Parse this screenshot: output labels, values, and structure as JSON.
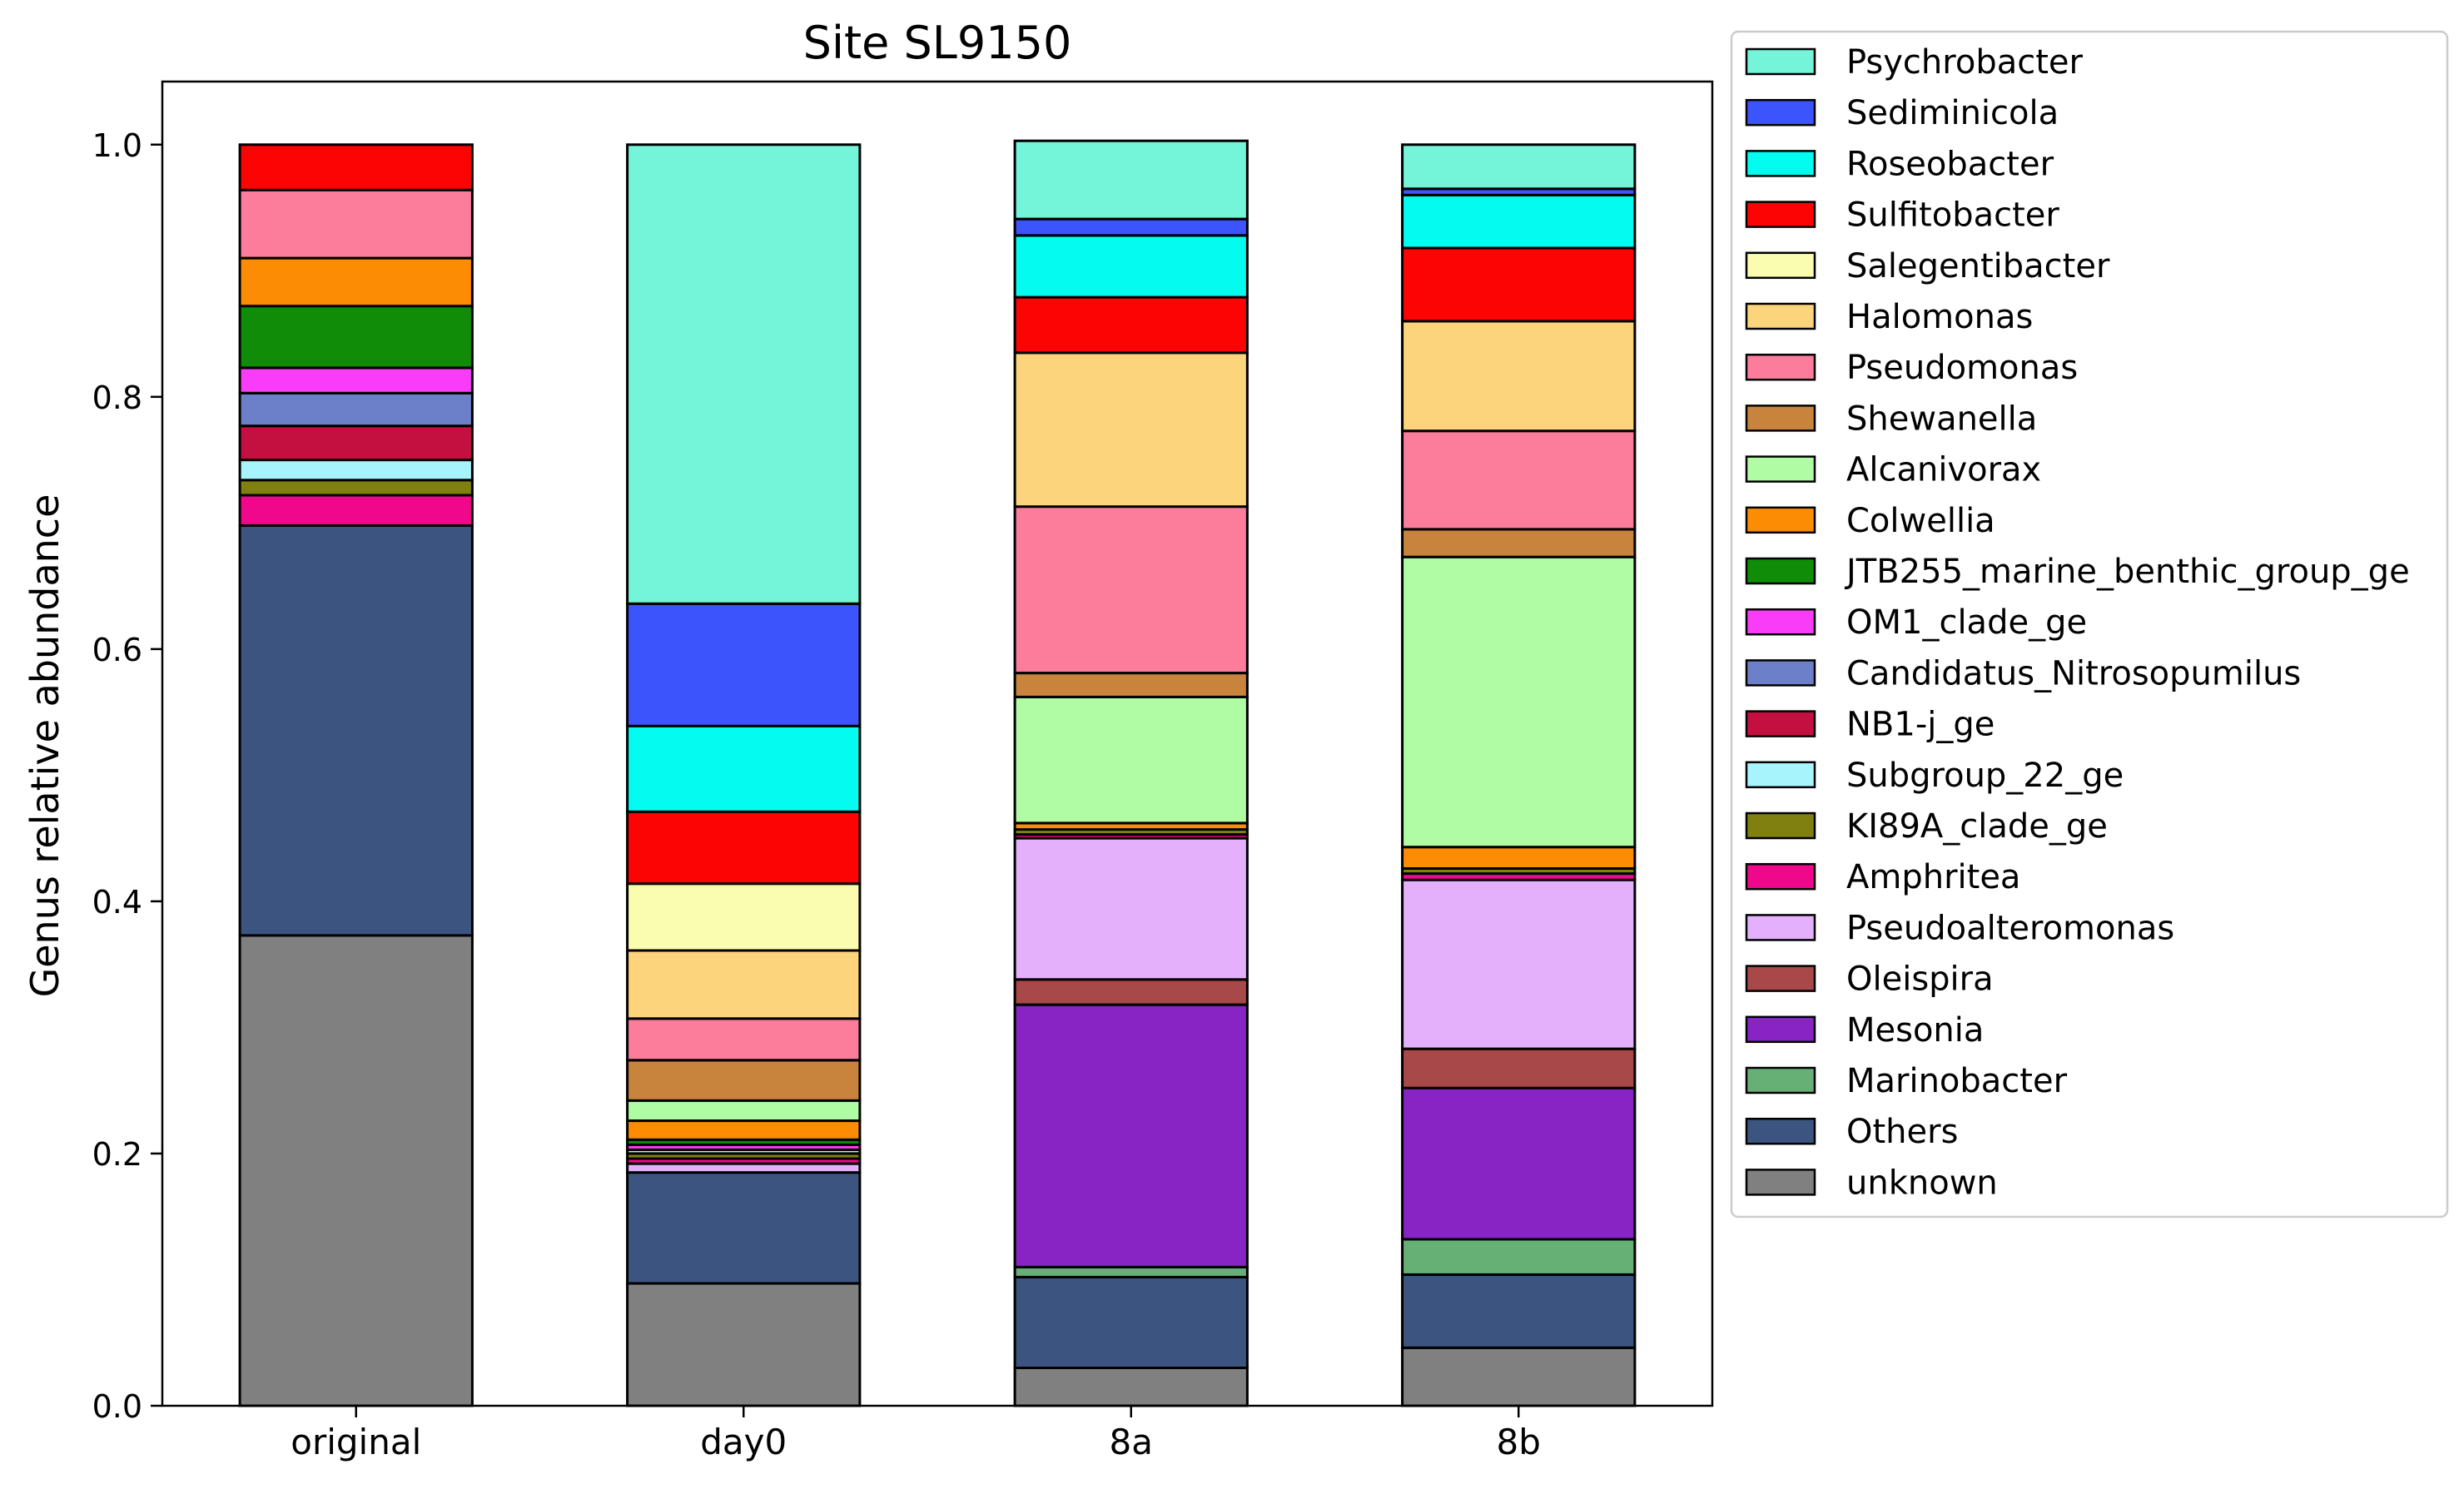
{
  "chart_data": {
    "type": "bar",
    "stacked": true,
    "title": "Site SL9150",
    "xlabel": "",
    "ylabel": "Genus relative abundance",
    "ylim": [
      0,
      1.05
    ],
    "yticks": [
      "0.0",
      "0.2",
      "0.4",
      "0.6",
      "0.8",
      "1.0"
    ],
    "grid": false,
    "legend_position": "right, outside plot",
    "categories": [
      "original",
      "day0",
      "8a",
      "8b"
    ],
    "series": [
      {
        "name": "unknown",
        "color": "#808080",
        "values": [
          0.373,
          0.097,
          0.03,
          0.046
        ]
      },
      {
        "name": "Others",
        "color": "#3c5580",
        "values": [
          0.325,
          0.088,
          0.072,
          0.058
        ]
      },
      {
        "name": "Marinobacter",
        "color": "#66b076",
        "values": [
          0.0,
          0.0,
          0.008,
          0.028
        ]
      },
      {
        "name": "Mesonia",
        "color": "#8824c4",
        "values": [
          0.0,
          0.0,
          0.208,
          0.12
        ]
      },
      {
        "name": "Oleispira",
        "color": "#a84848",
        "values": [
          0.0,
          0.0,
          0.02,
          0.031
        ]
      },
      {
        "name": "Pseudoalteromonas",
        "color": "#e4b0fc",
        "values": [
          0.0,
          0.007,
          0.112,
          0.134
        ]
      },
      {
        "name": "Amphritea",
        "color": "#f0088c",
        "values": [
          0.024,
          0.004,
          0.003,
          0.005
        ]
      },
      {
        "name": "KI89A_clade_ge",
        "color": "#808010",
        "values": [
          0.012,
          0.004,
          0.004,
          0.004
        ]
      },
      {
        "name": "Subgroup_22_ge",
        "color": "#a8f4fc",
        "values": [
          0.016,
          0.003,
          0.0,
          0.0
        ]
      },
      {
        "name": "NB1-j_ge",
        "color": "#c41040",
        "values": [
          0.027,
          0.0,
          0.0,
          0.0
        ]
      },
      {
        "name": "Candidatus_Nitrosopumilus",
        "color": "#6b80c8",
        "values": [
          0.026,
          0.0,
          0.0,
          0.0
        ]
      },
      {
        "name": "OM1_clade_ge",
        "color": "#f83cf8",
        "values": [
          0.02,
          0.004,
          0.0,
          0.0
        ]
      },
      {
        "name": "JTB255_marine_benthic_group_ge",
        "color": "#108c08",
        "values": [
          0.049,
          0.004,
          0.0,
          0.0
        ]
      },
      {
        "name": "Colwellia",
        "color": "#fc8c04",
        "values": [
          0.038,
          0.015,
          0.005,
          0.017
        ]
      },
      {
        "name": "Alcanivorax",
        "color": "#b0fca4",
        "values": [
          0.0,
          0.016,
          0.1,
          0.23
        ]
      },
      {
        "name": "Shewanella",
        "color": "#c8843c",
        "values": [
          0.0,
          0.032,
          0.019,
          0.022
        ]
      },
      {
        "name": "Pseudomonas",
        "color": "#fc7c9c",
        "values": [
          0.054,
          0.033,
          0.132,
          0.078
        ]
      },
      {
        "name": "Halomonas",
        "color": "#fcd47c",
        "values": [
          0.0,
          0.054,
          0.122,
          0.087
        ]
      },
      {
        "name": "Salegentibacter",
        "color": "#fafcb0",
        "values": [
          0.0,
          0.053,
          0.0,
          0.0
        ]
      },
      {
        "name": "Sulfitobacter",
        "color": "#fc0404",
        "values": [
          0.036,
          0.057,
          0.044,
          0.058
        ]
      },
      {
        "name": "Roseobacter",
        "color": "#04fcf0",
        "values": [
          0.0,
          0.068,
          0.049,
          0.042
        ]
      },
      {
        "name": "Sediminicola",
        "color": "#3c54fc",
        "values": [
          0.0,
          0.097,
          0.013,
          0.005
        ]
      },
      {
        "name": "Psychrobacter",
        "color": "#74f4d8",
        "values": [
          0.0,
          0.364,
          0.062,
          0.035
        ]
      }
    ],
    "legend_order": [
      "Psychrobacter",
      "Sediminicola",
      "Roseobacter",
      "Sulfitobacter",
      "Salegentibacter",
      "Halomonas",
      "Pseudomonas",
      "Shewanella",
      "Alcanivorax",
      "Colwellia",
      "JTB255_marine_benthic_group_ge",
      "OM1_clade_ge",
      "Candidatus_Nitrosopumilus",
      "NB1-j_ge",
      "Subgroup_22_ge",
      "KI89A_clade_ge",
      "Amphritea",
      "Pseudoalteromonas",
      "Oleispira",
      "Mesonia",
      "Marinobacter",
      "Others",
      "unknown"
    ]
  }
}
